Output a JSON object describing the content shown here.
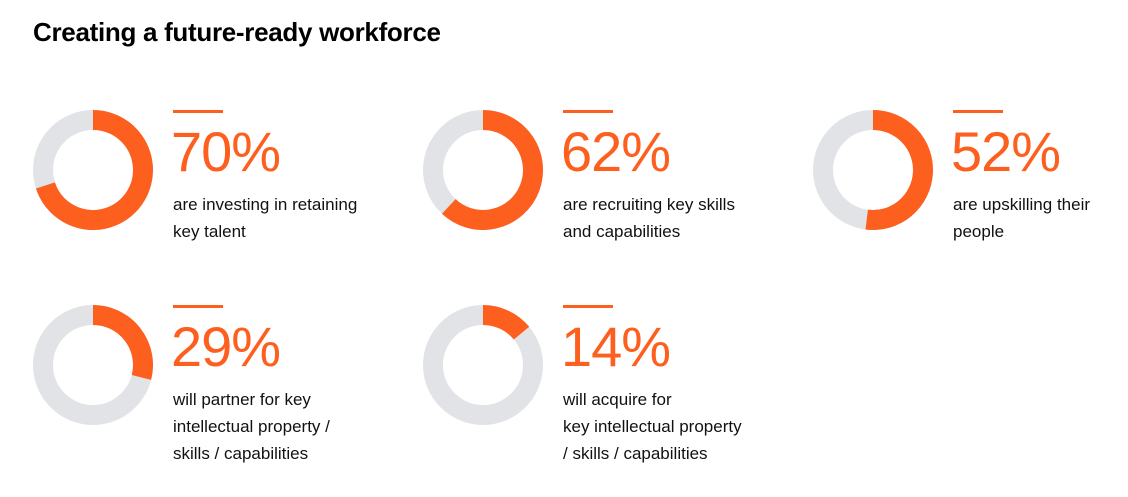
{
  "title": "Creating a future-ready workforce",
  "colors": {
    "accent": "#fd5f1f",
    "track": "#e1e3e6",
    "text": "#111111",
    "background": "#ffffff"
  },
  "chart_data": {
    "type": "pie",
    "title": "Creating a future-ready workforce",
    "series": [
      {
        "value": 70,
        "label": "70%",
        "lines": [
          "are investing in retaining",
          "key talent"
        ]
      },
      {
        "value": 62,
        "label": "62%",
        "lines": [
          "are recruiting key skills",
          "and capabilities"
        ]
      },
      {
        "value": 52,
        "label": "52%",
        "lines": [
          "are upskilling their",
          "people"
        ]
      },
      {
        "value": 29,
        "label": "29%",
        "lines": [
          "will partner for key",
          "intellectual property /",
          "skills / capabilities"
        ]
      },
      {
        "value": 14,
        "label": "14%",
        "lines": [
          "will acquire for",
          "key intellectual property",
          "/ skills / capabilities"
        ]
      }
    ]
  }
}
